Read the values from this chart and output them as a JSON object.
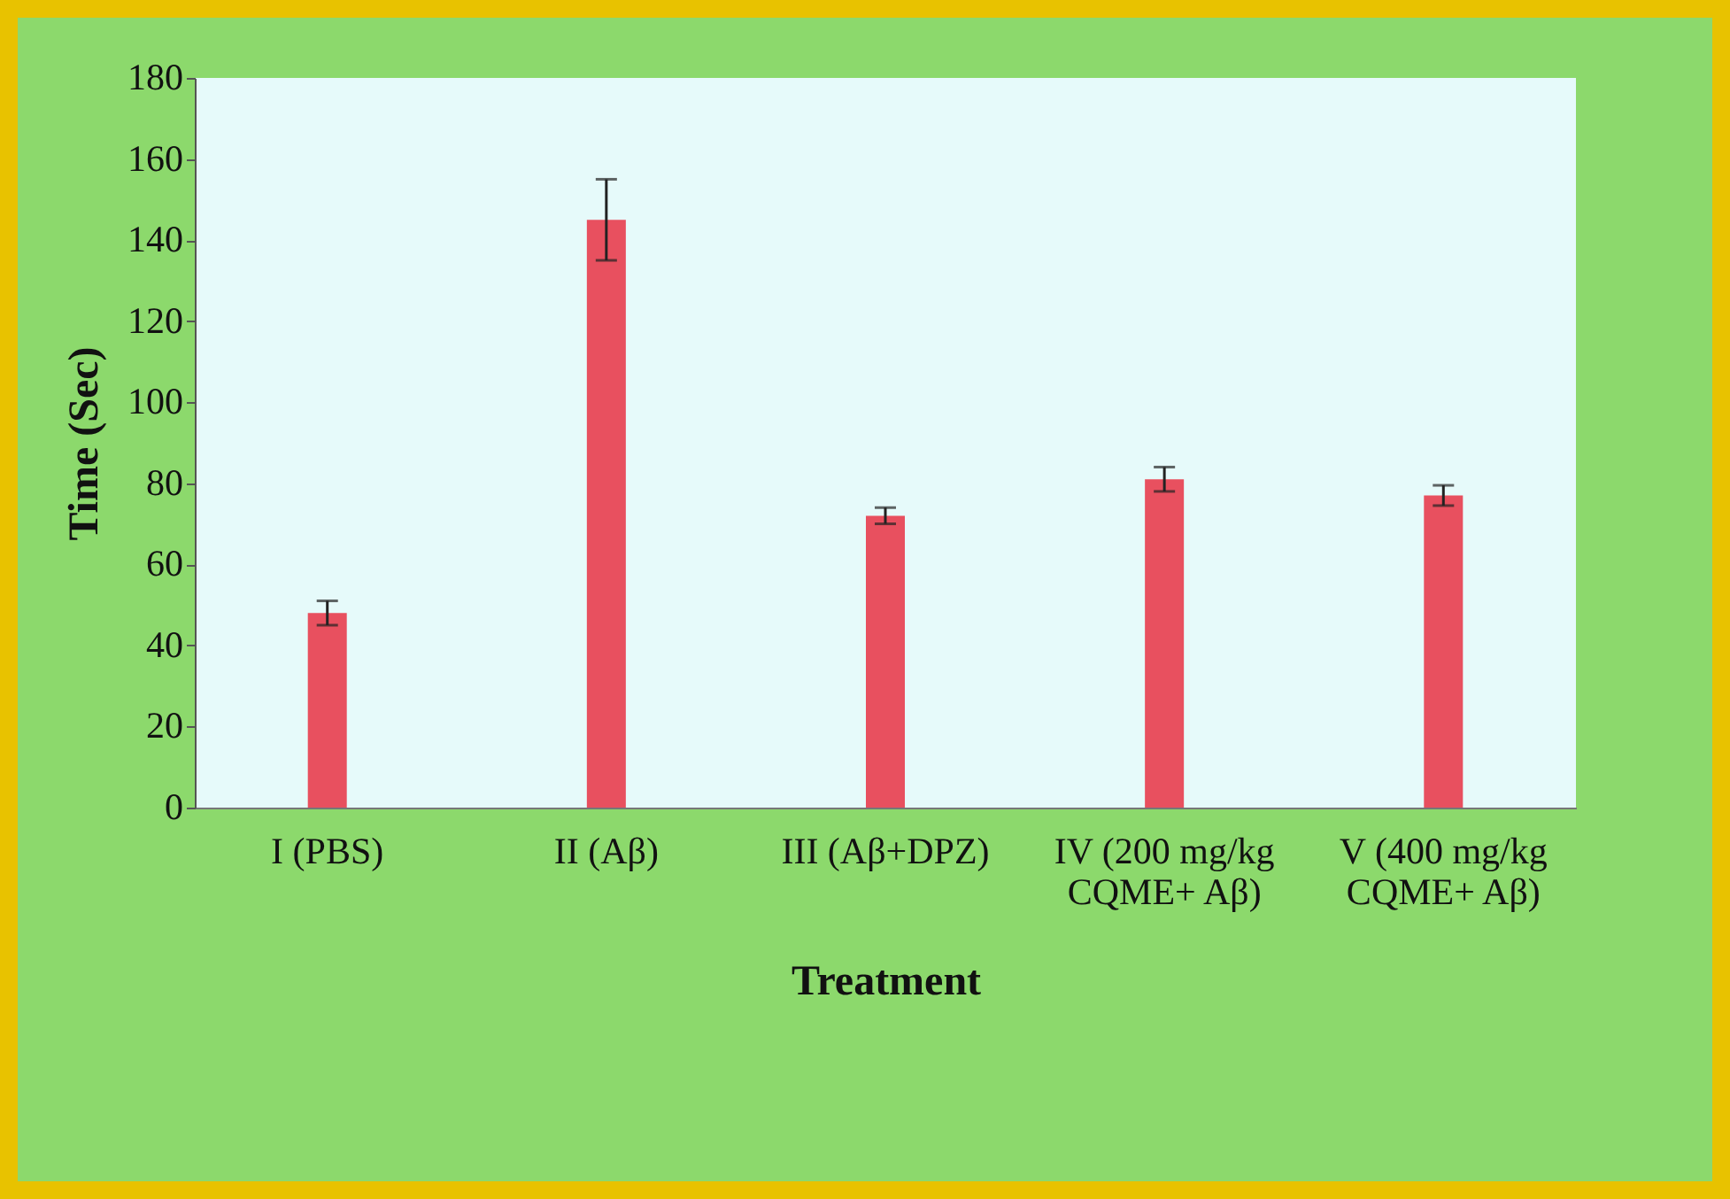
{
  "chart_data": {
    "type": "bar",
    "xlabel": "Treatment",
    "ylabel": "Time (Sec)",
    "categories": [
      "I (PBS)",
      "II (Aβ)",
      "III (Aβ+DPZ)",
      "IV (200 mg/kg CQME+ Aβ)",
      "V (400 mg/kg CQME+ Aβ)"
    ],
    "values": [
      48,
      145,
      72,
      81,
      77
    ],
    "errors": [
      3,
      10,
      2,
      3,
      2.5
    ],
    "color": "#e8505f",
    "ylim": [
      0,
      180
    ],
    "yticks": [
      0,
      20,
      40,
      60,
      80,
      100,
      120,
      140,
      160,
      180
    ]
  }
}
